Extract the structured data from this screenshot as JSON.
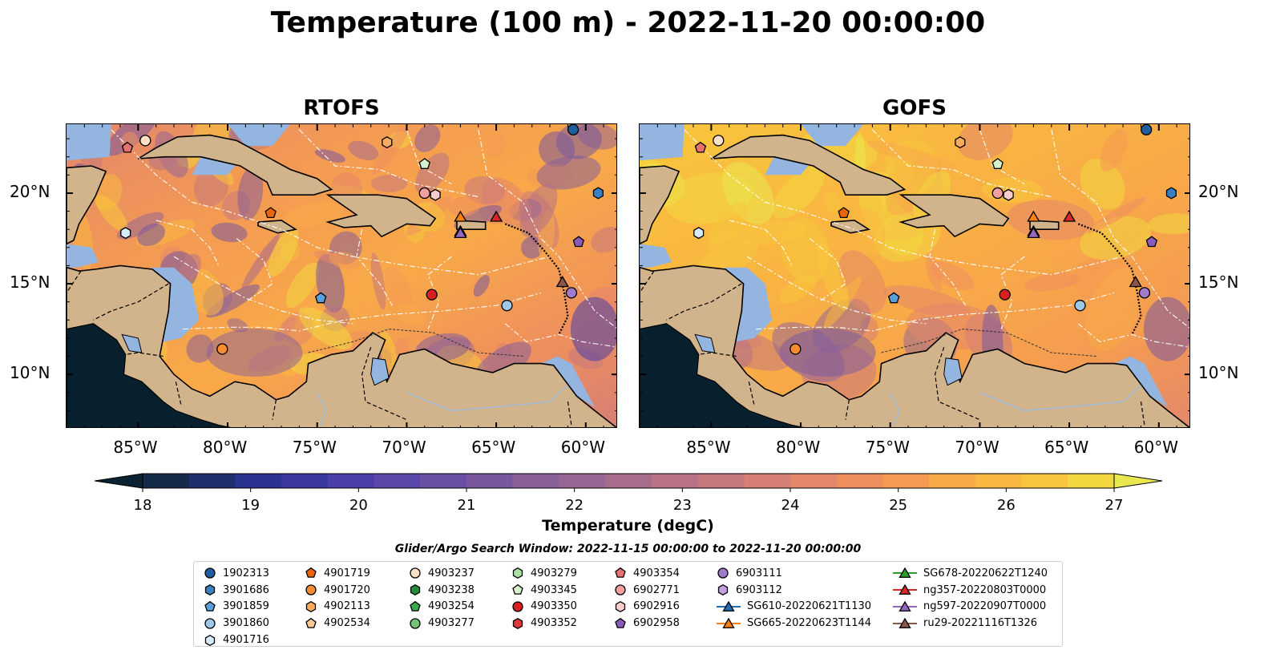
{
  "title": "Temperature (100 m) - 2022-11-20 00:00:00",
  "panels": [
    {
      "title": "RTOFS"
    },
    {
      "title": "GOFS"
    }
  ],
  "axes": {
    "lon_labels": [
      "85°W",
      "80°W",
      "75°W",
      "70°W",
      "65°W",
      "60°W"
    ],
    "lat_labels": [
      "20°N",
      "15°N",
      "10°N"
    ]
  },
  "colorbar": {
    "label": "Temperature (degC)",
    "min": 18,
    "max": 27,
    "step": 0.5,
    "extend": "both",
    "ticks": [
      "18",
      "19",
      "20",
      "21",
      "22",
      "23",
      "24",
      "25",
      "26",
      "27"
    ],
    "colors": [
      "#0b2232",
      "#152a4a",
      "#1f2f6e",
      "#2b3290",
      "#3a37a0",
      "#4a3ea8",
      "#5b47a8",
      "#6a4fa4",
      "#79579f",
      "#885f99",
      "#976693",
      "#a76c8c",
      "#b77285",
      "#c7787d",
      "#d67f74",
      "#e3876a",
      "#ee8f5e",
      "#f49b52",
      "#f8a948",
      "#f9b840",
      "#f8c63c",
      "#f2d740",
      "#eae84f"
    ]
  },
  "legend": {
    "title": "Glider/Argo Search Window: 2022-11-15 00:00:00 to 2022-11-20 00:00:00",
    "columns": [
      [
        {
          "label": "1902313",
          "marker": "circle",
          "color": "#1f5f9f"
        },
        {
          "label": "3901686",
          "marker": "hexagon",
          "color": "#3a80c0"
        },
        {
          "label": "3901859",
          "marker": "pentagon",
          "color": "#5aa0dc"
        },
        {
          "label": "3901860",
          "marker": "circle",
          "color": "#9ec8e8"
        },
        {
          "label": "4901716",
          "marker": "hexagon",
          "color": "#d6ecf8"
        }
      ],
      [
        {
          "label": "4901719",
          "marker": "pentagon",
          "color": "#e8650a"
        },
        {
          "label": "4901720",
          "marker": "circle",
          "color": "#f78d2e"
        },
        {
          "label": "4902113",
          "marker": "hexagon",
          "color": "#f9ab60"
        },
        {
          "label": "4902534",
          "marker": "pentagon",
          "color": "#fcc898"
        }
      ],
      [
        {
          "label": "4903237",
          "marker": "circle",
          "color": "#fde1c8"
        },
        {
          "label": "4903238",
          "marker": "hexagon",
          "color": "#238b3a"
        },
        {
          "label": "4903254",
          "marker": "pentagon",
          "color": "#3aa84c"
        },
        {
          "label": "4903277",
          "marker": "circle",
          "color": "#74c476"
        }
      ],
      [
        {
          "label": "4903279",
          "marker": "hexagon",
          "color": "#a8dea0"
        },
        {
          "label": "4903345",
          "marker": "pentagon",
          "color": "#d6f2cc"
        },
        {
          "label": "4903350",
          "marker": "circle",
          "color": "#d62022"
        },
        {
          "label": "4903352",
          "marker": "hexagon",
          "color": "#e03838"
        }
      ],
      [
        {
          "label": "4903354",
          "marker": "pentagon",
          "color": "#e8706e"
        },
        {
          "label": "6902771",
          "marker": "circle",
          "color": "#f4a0a0"
        },
        {
          "label": "6902916",
          "marker": "hexagon",
          "color": "#fbcccc"
        },
        {
          "label": "6902958",
          "marker": "pentagon",
          "color": "#8a5bb8"
        }
      ],
      [
        {
          "label": "6903111",
          "marker": "circle",
          "color": "#a07cc8"
        },
        {
          "label": "6903112",
          "marker": "hexagon",
          "color": "#c0a0e0"
        },
        {
          "label": "SG610-20220621T1130",
          "marker": "triangle",
          "color": "#1f6fb4"
        },
        {
          "label": "SG665-20220623T1144",
          "marker": "triangle",
          "color": "#ff7f0e"
        }
      ],
      [
        {
          "label": "SG678-20220622T1240",
          "marker": "triangle",
          "color": "#2ca02c"
        },
        {
          "label": "ng357-20220803T0000",
          "marker": "triangle",
          "color": "#d62728"
        },
        {
          "label": "ng597-20220907T0000",
          "marker": "triangle",
          "color": "#9467bd"
        },
        {
          "label": "ru29-20221116T1326",
          "marker": "triangle",
          "color": "#8c564b"
        }
      ]
    ]
  },
  "map_points": [
    {
      "id": "1902313",
      "lon": -60.7,
      "lat": 23.5
    },
    {
      "id": "3901686",
      "lon": -59.3,
      "lat": 20.0
    },
    {
      "id": "3901859",
      "lon": -74.8,
      "lat": 14.2
    },
    {
      "id": "3901860",
      "lon": -64.4,
      "lat": 13.8
    },
    {
      "id": "4901716",
      "lon": -85.7,
      "lat": 17.8
    },
    {
      "id": "4901719",
      "lon": -77.6,
      "lat": 18.9
    },
    {
      "id": "4901720",
      "lon": -80.3,
      "lat": 11.4
    },
    {
      "id": "4902113",
      "lon": -71.1,
      "lat": 22.8
    },
    {
      "id": "4903237",
      "lon": -84.6,
      "lat": 22.9
    },
    {
      "id": "4903345",
      "lon": -69.0,
      "lat": 21.6
    },
    {
      "id": "4903350",
      "lon": -68.6,
      "lat": 14.4
    },
    {
      "id": "4903354",
      "lon": -85.6,
      "lat": 22.5
    },
    {
      "id": "6902771",
      "lon": -69.0,
      "lat": 20.0
    },
    {
      "id": "6902916",
      "lon": -68.4,
      "lat": 19.9
    },
    {
      "id": "6902958",
      "lon": -60.4,
      "lat": 17.3
    },
    {
      "id": "6903111",
      "lon": -60.8,
      "lat": 14.5
    },
    {
      "id": "SG610-20220621T1130",
      "lon": -67.0,
      "lat": 17.9
    },
    {
      "id": "SG665-20220623T1144",
      "lon": -67.0,
      "lat": 18.7
    },
    {
      "id": "ng357-20220803T0000",
      "lon": -65.0,
      "lat": 18.7
    },
    {
      "id": "ng597-20220907T0000",
      "lon": -67.0,
      "lat": 17.8
    },
    {
      "id": "ru29-20221116T1326",
      "lon": -61.3,
      "lat": 15.1
    }
  ]
}
